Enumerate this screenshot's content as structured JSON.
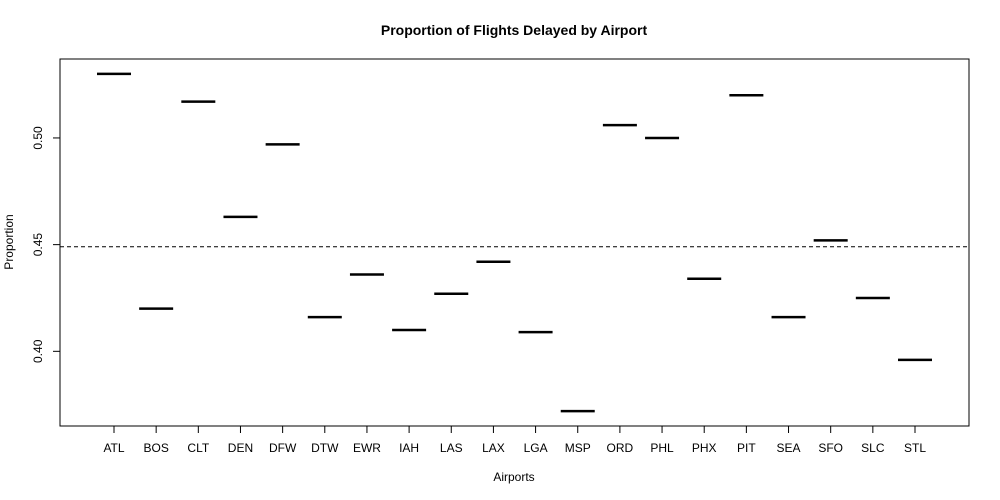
{
  "chart_data": {
    "type": "bar",
    "title": "Proportion of Flights Delayed by Airport",
    "xlabel": "Airports",
    "ylabel": "Proportion",
    "categories": [
      "ATL",
      "BOS",
      "CLT",
      "DEN",
      "DFW",
      "DTW",
      "EWR",
      "IAH",
      "LAS",
      "LAX",
      "LGA",
      "MSP",
      "ORD",
      "PHL",
      "PHX",
      "PIT",
      "SEA",
      "SFO",
      "SLC",
      "STL"
    ],
    "values": [
      0.53,
      0.42,
      0.517,
      0.463,
      0.497,
      0.416,
      0.436,
      0.41,
      0.427,
      0.442,
      0.409,
      0.372,
      0.506,
      0.5,
      0.434,
      0.52,
      0.416,
      0.452,
      0.425,
      0.396
    ],
    "reference_line": 0.449,
    "reference_line_style": "dashed",
    "ylim": [
      0.365,
      0.537
    ],
    "yticks": [
      0.4,
      0.45,
      0.5
    ],
    "ytick_labels": [
      "0.40",
      "0.45",
      "0.50"
    ],
    "grid": false,
    "mark_style": "horizontal segment per category",
    "colors": {
      "marks": "#000000",
      "axes": "#000000"
    }
  }
}
